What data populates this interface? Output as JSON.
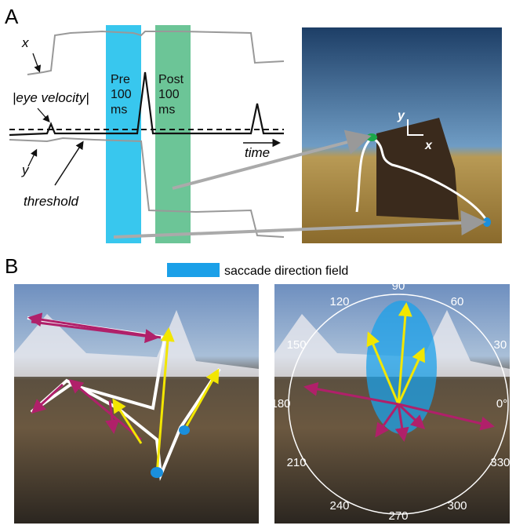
{
  "panel_a": {
    "label": "A",
    "trace_x_label": "x",
    "velocity_label": "|eye velocity|",
    "trace_y_label": "y",
    "threshold_label": "threshold",
    "pre_window": "Pre\n100\nms",
    "post_window": "Post\n100\nms",
    "time_label": "time",
    "photo_axis_y": "y",
    "photo_axis_x": "x"
  },
  "panel_b": {
    "label": "B",
    "legend": "saccade direction field",
    "polar_labels": [
      90,
      60,
      30,
      {
        "value": 0,
        "label": "0°"
      },
      330,
      300,
      270,
      240,
      210,
      180,
      150,
      120
    ]
  }
}
